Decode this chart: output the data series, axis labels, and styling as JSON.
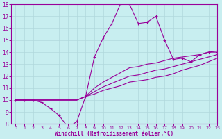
{
  "xlabel": "Windchill (Refroidissement éolien,°C)",
  "bg_color": "#c8eef0",
  "line_color": "#990099",
  "grid_color": "#b0d8dc",
  "xlim": [
    -0.5,
    23
  ],
  "ylim": [
    8,
    18
  ],
  "yticks": [
    8,
    9,
    10,
    11,
    12,
    13,
    14,
    15,
    16,
    17,
    18
  ],
  "xticks": [
    0,
    1,
    2,
    3,
    4,
    5,
    6,
    7,
    8,
    9,
    10,
    11,
    12,
    13,
    14,
    15,
    16,
    17,
    18,
    19,
    20,
    21,
    22,
    23
  ],
  "hours": [
    0,
    1,
    2,
    3,
    4,
    5,
    6,
    7,
    8,
    9,
    10,
    11,
    12,
    13,
    14,
    15,
    16,
    17,
    18,
    19,
    20,
    21,
    22,
    23
  ],
  "temp_line": [
    10,
    10,
    10,
    9.8,
    9.3,
    8.7,
    7.7,
    8.2,
    10.3,
    13.6,
    15.2,
    16.4,
    18.1,
    18.0,
    16.4,
    16.5,
    17.0,
    15.0,
    13.4,
    13.5,
    13.2,
    13.8,
    14.0,
    14.0
  ],
  "fan_line1": [
    10,
    10,
    10,
    10,
    10,
    10,
    10,
    10,
    10.3,
    10.5,
    10.8,
    11.0,
    11.2,
    11.5,
    11.6,
    11.7,
    11.9,
    12.0,
    12.2,
    12.5,
    12.7,
    12.9,
    13.2,
    13.5
  ],
  "fan_line2": [
    10,
    10,
    10,
    10,
    10,
    10,
    10,
    10,
    10.3,
    10.7,
    11.1,
    11.4,
    11.7,
    12.0,
    12.1,
    12.3,
    12.5,
    12.6,
    12.8,
    13.0,
    13.2,
    13.4,
    13.6,
    13.8
  ],
  "fan_line3": [
    10,
    10,
    10,
    10,
    10,
    10,
    10,
    10,
    10.3,
    11.0,
    11.5,
    11.9,
    12.3,
    12.7,
    12.8,
    13.0,
    13.1,
    13.3,
    13.5,
    13.6,
    13.7,
    13.8,
    14.0,
    14.1
  ]
}
